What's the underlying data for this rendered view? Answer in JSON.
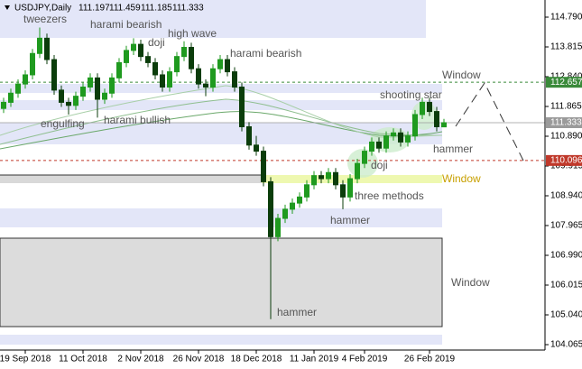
{
  "chart_data": {
    "type": "candlestick",
    "title": "USDJPY,Daily",
    "open": [
      111.8,
      112.0,
      112.3,
      112.6,
      112.9,
      113.6,
      114.1,
      113.4,
      112.4,
      112.0,
      111.9,
      112.2,
      112.5,
      112.8,
      112.1,
      112.3,
      112.8,
      113.3,
      113.7,
      113.9,
      113.5,
      113.3,
      112.9,
      112.5,
      113.0,
      113.5,
      113.8,
      113.1,
      112.6,
      112.5,
      113.1,
      113.4,
      113.0,
      112.5,
      111.2,
      110.6,
      110.4,
      109.4,
      107.6,
      108.2,
      108.5,
      108.7,
      108.9,
      109.3,
      109.6,
      109.5,
      109.7,
      109.3,
      108.9,
      109.5,
      110.0,
      110.4,
      110.7,
      110.5,
      110.9,
      111.0,
      110.7,
      110.9,
      111.6,
      112.0,
      111.7,
      111.197
    ],
    "high": [
      112.15,
      112.45,
      112.75,
      113.05,
      113.75,
      114.45,
      114.25,
      113.55,
      112.55,
      112.15,
      112.35,
      112.65,
      112.95,
      112.95,
      112.45,
      112.95,
      113.45,
      113.85,
      114.1,
      114.05,
      113.65,
      113.45,
      113.05,
      113.15,
      113.65,
      114.0,
      113.95,
      113.25,
      112.75,
      113.25,
      113.55,
      113.55,
      113.15,
      112.65,
      111.35,
      110.9,
      110.55,
      109.55,
      108.35,
      108.65,
      108.85,
      109.05,
      109.45,
      109.75,
      109.75,
      109.85,
      109.85,
      109.45,
      109.65,
      110.15,
      110.55,
      110.85,
      110.85,
      111.05,
      111.15,
      111.15,
      111.05,
      111.75,
      112.15,
      112.15,
      111.85,
      111.459
    ],
    "low": [
      111.65,
      111.85,
      112.15,
      112.45,
      112.75,
      113.45,
      113.25,
      112.25,
      111.85,
      111.6,
      111.75,
      112.05,
      112.35,
      111.5,
      111.95,
      112.15,
      112.65,
      113.15,
      113.55,
      113.35,
      113.15,
      112.75,
      112.35,
      112.35,
      112.85,
      113.35,
      112.95,
      112.45,
      112.2,
      112.35,
      112.95,
      112.85,
      112.35,
      111.05,
      110.45,
      110.25,
      109.25,
      104.9,
      107.45,
      108.05,
      108.35,
      108.55,
      108.75,
      109.15,
      109.35,
      109.35,
      109.15,
      108.5,
      108.75,
      109.35,
      109.85,
      110.25,
      110.35,
      110.35,
      110.75,
      110.55,
      110.55,
      110.75,
      111.45,
      111.55,
      111.05,
      111.185
    ],
    "close": [
      112.0,
      112.3,
      112.6,
      112.9,
      113.6,
      114.1,
      113.4,
      112.4,
      112.0,
      111.9,
      112.2,
      112.5,
      112.8,
      112.1,
      112.3,
      112.8,
      113.3,
      113.7,
      113.9,
      113.5,
      113.3,
      112.9,
      112.5,
      113.0,
      113.5,
      113.8,
      113.1,
      112.6,
      112.5,
      113.1,
      113.4,
      113.0,
      112.5,
      111.2,
      110.6,
      110.4,
      109.4,
      107.6,
      108.2,
      108.5,
      108.7,
      108.9,
      109.3,
      109.6,
      109.5,
      109.7,
      109.3,
      108.9,
      109.5,
      110.0,
      110.4,
      110.7,
      110.5,
      110.9,
      111.0,
      110.7,
      110.9,
      111.6,
      112.0,
      111.7,
      111.2,
      111.333
    ],
    "up_color": "#1f9a1f",
    "down_color": "#0b3d0b",
    "x_labels": [
      "19 Sep 2018",
      "11 Oct 2018",
      "2 Nov 2018",
      "26 Nov 2018",
      "18 Dec 2018",
      "11 Jan 2019",
      "4 Feb 2019",
      "26 Feb 2019"
    ],
    "ylim": [
      103.888,
      115.351
    ],
    "yticks": [
      {
        "value": 114.79,
        "label": "114.790"
      },
      {
        "value": 113.815,
        "label": "113.815"
      },
      {
        "value": 112.84,
        "label": "112.840"
      },
      {
        "value": 111.865,
        "label": "111.865"
      },
      {
        "value": 110.89,
        "label": "110.890"
      },
      {
        "value": 109.915,
        "label": "109.915"
      },
      {
        "value": 108.94,
        "label": "108.940"
      },
      {
        "value": 107.965,
        "label": "107.965"
      },
      {
        "value": 106.99,
        "label": "106.990"
      },
      {
        "value": 106.015,
        "label": "106.015"
      },
      {
        "value": 105.04,
        "label": "105.040"
      },
      {
        "value": 104.065,
        "label": "104.065"
      }
    ],
    "levels": [
      {
        "value": 112.657,
        "color": "#3a8a3a"
      },
      {
        "value": 110.096,
        "color": "#c0392b"
      }
    ],
    "current_color": "#9a9a9a",
    "annotations": [
      "tweezers",
      "harami bearish",
      "doji",
      "high wave",
      "harami bearish",
      "engulfing",
      "harami bullish",
      "Window",
      "shooting star",
      "hammer",
      "doji",
      "Window",
      "three methods",
      "hammer",
      "Window",
      "hammer"
    ]
  }
}
